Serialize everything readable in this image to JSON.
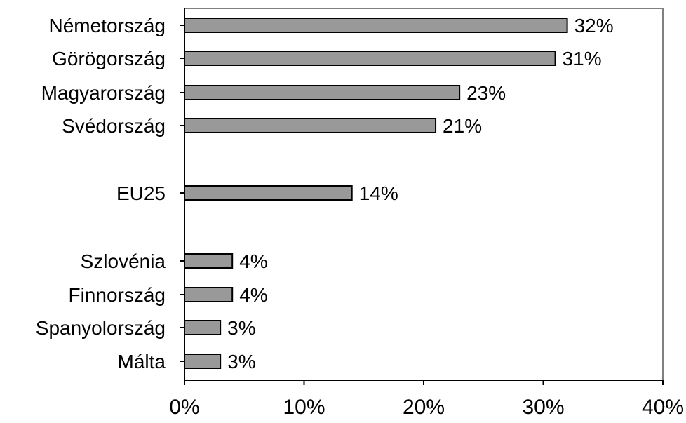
{
  "chart_data": {
    "type": "bar",
    "orientation": "horizontal",
    "categories": [
      "Németország",
      "Görögország",
      "Magyarország",
      "Svédország",
      "EU25",
      "Szlovénia",
      "Finnország",
      "Spanyolország",
      "Málta"
    ],
    "values": [
      32,
      31,
      23,
      21,
      14,
      4,
      4,
      3,
      3
    ],
    "value_labels": [
      "32%",
      "31%",
      "23%",
      "21%",
      "14%",
      "4%",
      "4%",
      "3%",
      "3%"
    ],
    "xlim": [
      0,
      40
    ],
    "x_ticks": [
      0,
      10,
      20,
      30,
      40
    ],
    "x_tick_labels": [
      "0%",
      "10%",
      "20%",
      "30%",
      "40%"
    ],
    "grid": false,
    "legend": "none",
    "colors": {
      "bar_fill": "#999999",
      "bar_stroke": "#000000",
      "axis": "#000000",
      "frame": "#808080"
    }
  }
}
